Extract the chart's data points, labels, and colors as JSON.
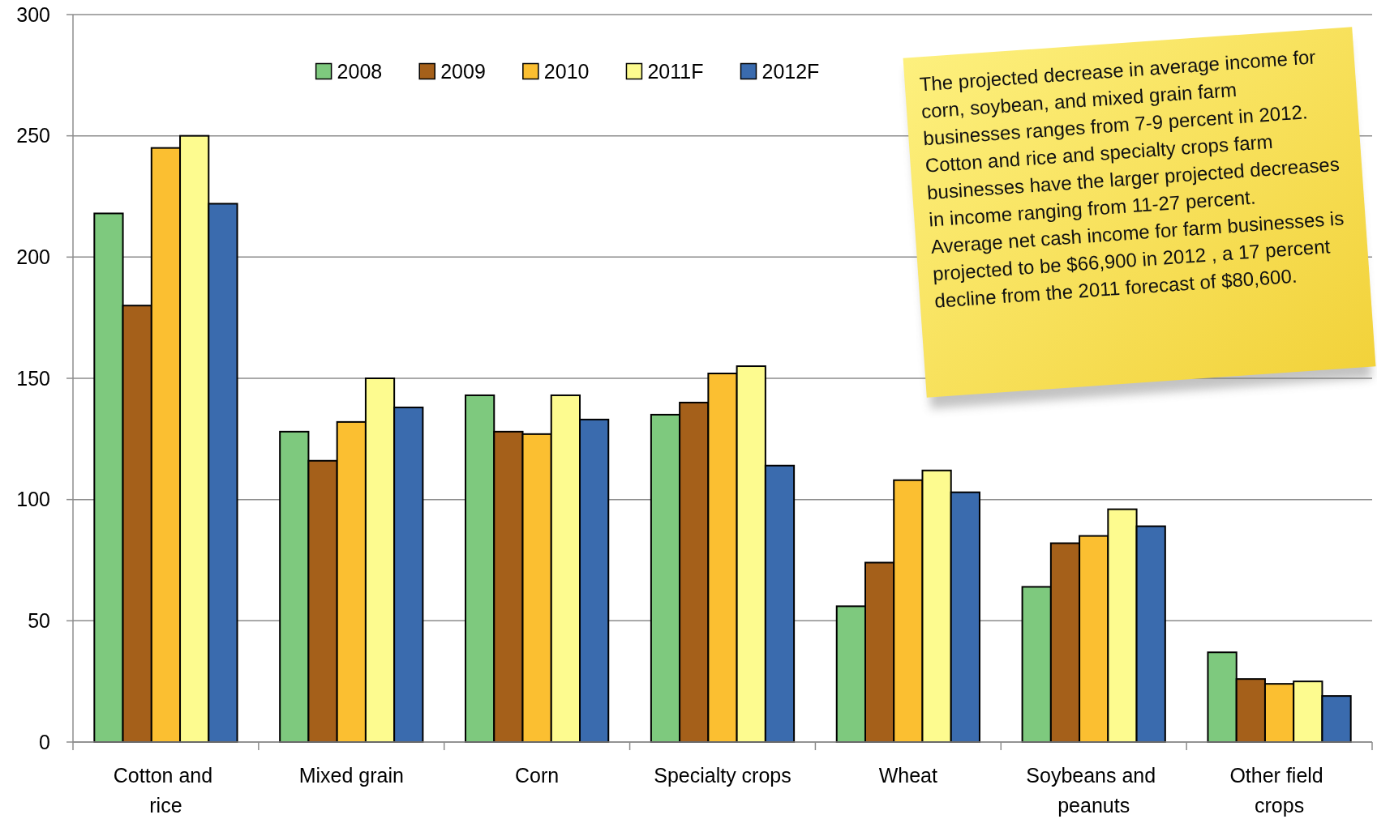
{
  "chart_data": {
    "type": "bar",
    "categories": [
      "Cotton and rice",
      "Mixed grain",
      "Corn",
      "Specialty crops",
      "Wheat",
      "Soybeans and peanuts",
      "Other field crops"
    ],
    "series": [
      {
        "name": "2008",
        "color": "#7ec97e",
        "values": [
          218,
          128,
          143,
          135,
          56,
          64,
          37
        ]
      },
      {
        "name": "2009",
        "color": "#a5601a",
        "values": [
          180,
          116,
          128,
          140,
          74,
          82,
          26
        ]
      },
      {
        "name": "2010",
        "color": "#fbbf31",
        "values": [
          245,
          132,
          127,
          152,
          108,
          85,
          24
        ]
      },
      {
        "name": "2011F",
        "color": "#fdfb8f",
        "values": [
          250,
          150,
          143,
          155,
          112,
          96,
          25
        ]
      },
      {
        "name": "2012F",
        "color": "#3a6bae",
        "values": [
          222,
          138,
          133,
          114,
          103,
          89,
          19
        ]
      }
    ],
    "ylim": [
      0,
      300
    ],
    "yticks": [
      0,
      50,
      100,
      150,
      200,
      250,
      300
    ],
    "grid": "y",
    "legend": "top",
    "annotations": [
      "The projected decrease in average income for corn, soybean, and mixed grain farm businesses ranges from 7-9 percent in 2012. Cotton and rice and specialty crops farm businesses have the larger projected decreases in income ranging from 11-27 percent.",
      "Average net cash income for farm businesses is projected to be $66,900 in 2012 , a 17 percent decline from the 2011 forecast of $80,600."
    ]
  }
}
